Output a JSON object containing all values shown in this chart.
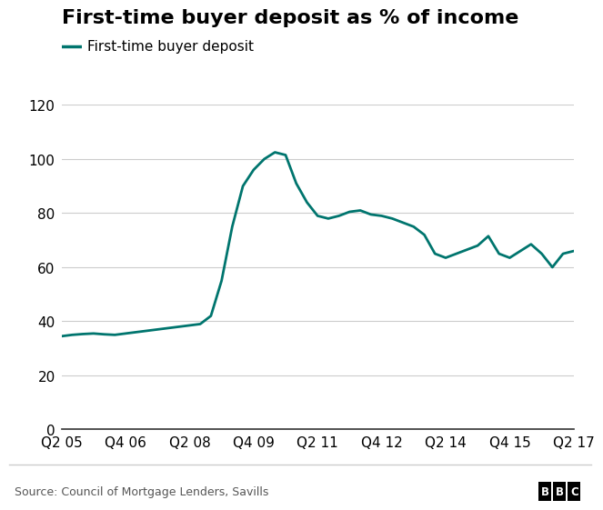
{
  "title": "First-time buyer deposit as % of income",
  "legend_label": "First-time buyer deposit",
  "source": "Source: Council of Mortgage Lenders, Savills",
  "bbc_text": "BBC",
  "line_color": "#00756e",
  "background_color": "#ffffff",
  "ylim": [
    0,
    120
  ],
  "yticks": [
    0,
    20,
    40,
    60,
    80,
    100,
    120
  ],
  "title_fontsize": 16,
  "legend_fontsize": 11,
  "tick_fontsize": 11,
  "source_fontsize": 9,
  "x_labels": [
    "Q2 05",
    "Q4 06",
    "Q2 08",
    "Q4 09",
    "Q2 11",
    "Q4 12",
    "Q2 14",
    "Q4 15",
    "Q2 17"
  ],
  "x_positions": [
    0,
    6,
    12,
    18,
    24,
    30,
    36,
    42,
    48
  ],
  "data_x": [
    0,
    1,
    2,
    3,
    4,
    5,
    6,
    7,
    8,
    9,
    10,
    11,
    12,
    13,
    14,
    15,
    16,
    17,
    18,
    19,
    20,
    21,
    22,
    23,
    24,
    25,
    26,
    27,
    28,
    29,
    30,
    31,
    32,
    33,
    34,
    35,
    36,
    37,
    38,
    39,
    40,
    41,
    42,
    43,
    44,
    45,
    46,
    47,
    48
  ],
  "data_y": [
    34.5,
    35.0,
    35.3,
    35.5,
    35.2,
    35.0,
    35.5,
    36.0,
    36.5,
    37.0,
    37.5,
    38.0,
    38.5,
    39.0,
    42.0,
    55.0,
    75.0,
    90.0,
    96.0,
    100.0,
    102.5,
    101.5,
    91.0,
    84.0,
    79.0,
    78.0,
    79.0,
    80.5,
    81.0,
    79.5,
    79.0,
    78.0,
    76.5,
    75.0,
    72.0,
    65.0,
    63.5,
    65.0,
    66.5,
    68.0,
    71.5,
    65.0,
    63.5,
    66.0,
    68.5,
    65.0,
    60.0,
    65.0,
    66.0
  ],
  "separator_color": "#cccccc",
  "bbc_box_color": "#000000",
  "bbc_text_color": "#ffffff",
  "bottom_text_color": "#555555",
  "spine_bottom_color": "#333333"
}
